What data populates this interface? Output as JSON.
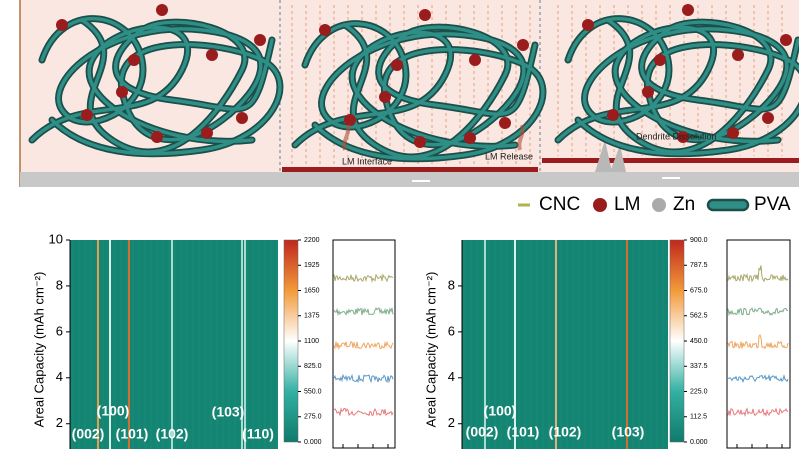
{
  "schematic": {
    "lm_interface": "LM Interface",
    "lm_release": "LM Release",
    "dendrite_dissolution": "Dendrite Dissolution"
  },
  "legend": [
    "CNC",
    "LM",
    "Zn",
    "PVA"
  ],
  "chart_data": [
    {
      "type": "heatmap",
      "ylabel": "Areal Capacity (mAh cm⁻²)",
      "ylim": [
        0.9,
        10
      ],
      "yticks": [
        2,
        4,
        6,
        8,
        10
      ],
      "annotations": [
        "(100)",
        "(103)",
        "(002)",
        "(101)",
        "(102)",
        "(110)"
      ],
      "colorbar_lim": [
        0,
        2200
      ],
      "colorbar_ticks": [
        {
          "value": 0,
          "label": "0.000"
        },
        {
          "value": 275,
          "label": "275.0"
        },
        {
          "value": 550,
          "label": "550.0"
        },
        {
          "value": 825,
          "label": "825.0"
        },
        1100,
        1375,
        1650,
        1925,
        2200
      ]
    },
    {
      "type": "heatmap",
      "ylabel": "Areal Capacity (mAh cm⁻²)",
      "ylim": [
        0.9,
        10
      ],
      "yticks": [
        2,
        4,
        6,
        8
      ],
      "annotations": [
        "(100)",
        "(002)",
        "(101)",
        "(102)",
        "(103)"
      ],
      "colorbar_lim": [
        0,
        900
      ],
      "colorbar_ticks": [
        {
          "value": 0,
          "label": "0.000"
        },
        112.5,
        {
          "value": 225,
          "label": "225.0"
        },
        337.5,
        {
          "value": 450,
          "label": "450.0"
        },
        562.5,
        {
          "value": 675,
          "label": "675.0"
        },
        787.5,
        {
          "value": 900,
          "label": "900.0"
        }
      ]
    }
  ]
}
